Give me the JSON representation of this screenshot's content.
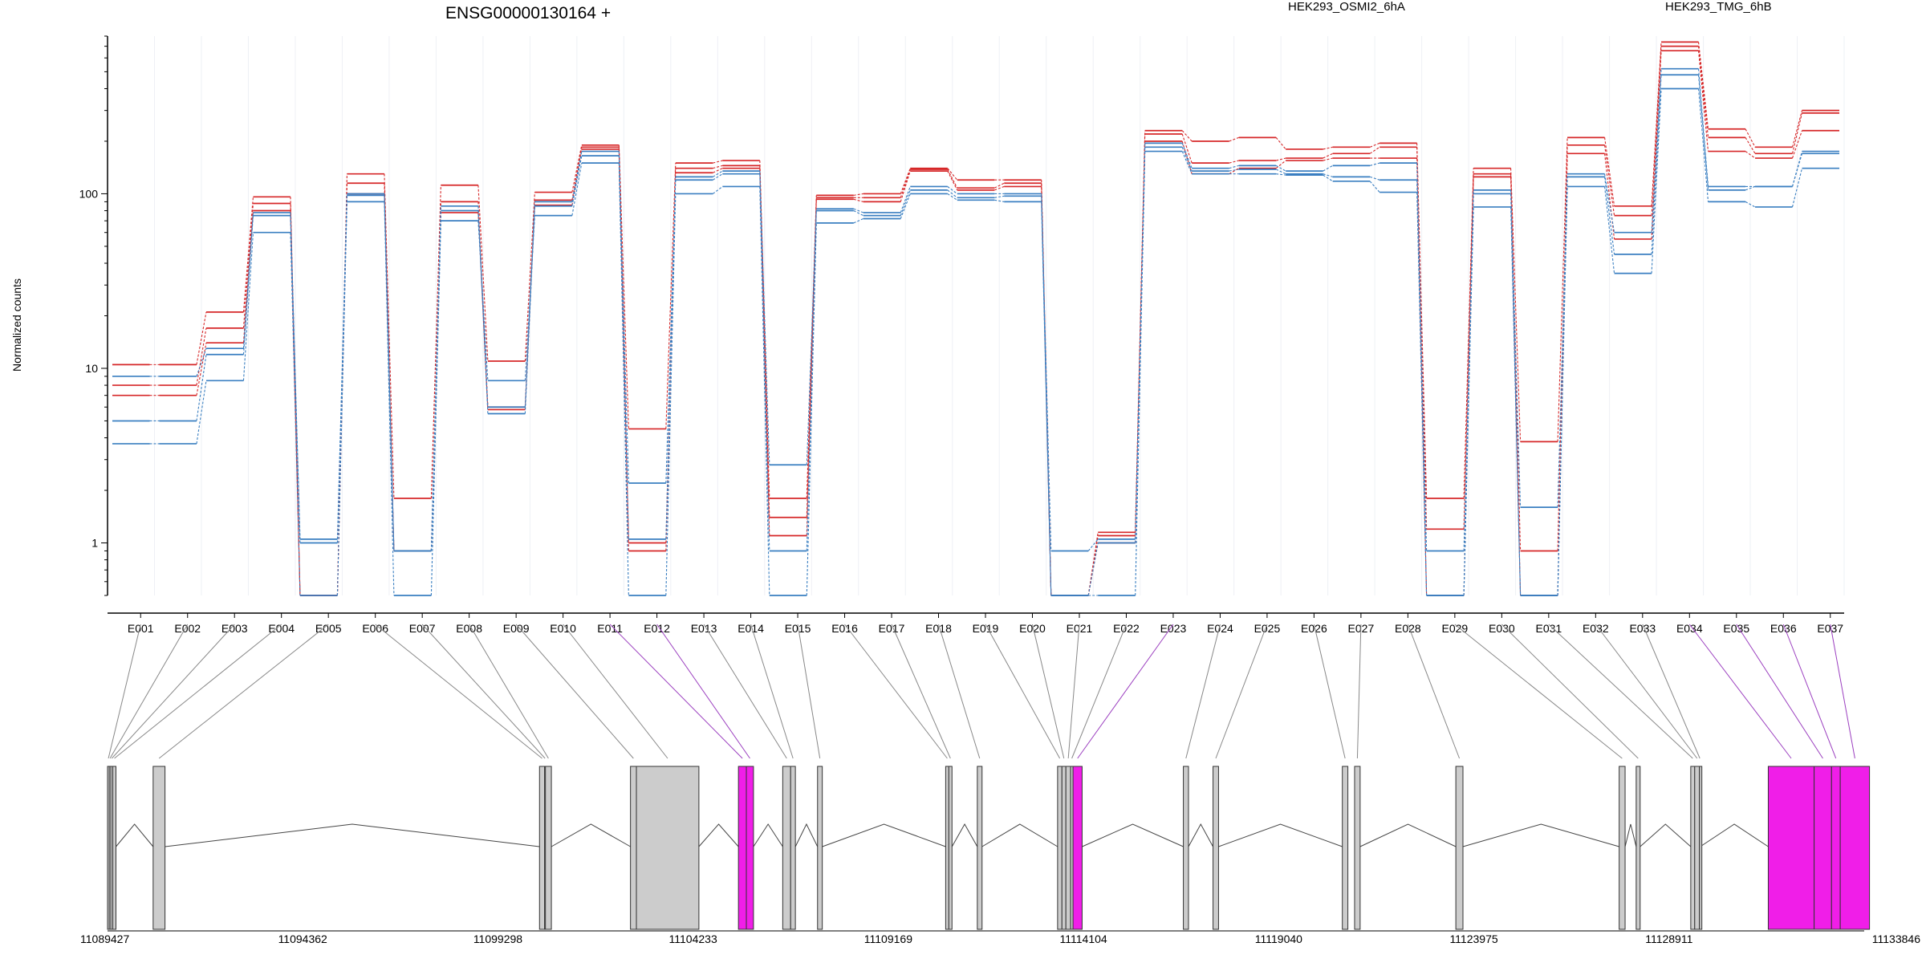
{
  "title": "ENSG00000130164 +",
  "legend": [
    {
      "label": "HEK293_OSMI2_6hA",
      "color": "#d62728"
    },
    {
      "label": "HEK293_TMG_6hB",
      "color": "#3a7fc1"
    }
  ],
  "colors": {
    "highlight_exon": "#f01ee8",
    "exon": "#cccccc",
    "link_highlight": "#9b3fbf",
    "link": "#888888"
  },
  "chart_data": {
    "type": "line",
    "scale": "log",
    "ylabel": "Normalized counts",
    "yticks": [
      "1",
      "10",
      "100"
    ],
    "ylim": [
      0.5,
      800
    ],
    "categories": [
      "E001",
      "E002",
      "E003",
      "E004",
      "E005",
      "E006",
      "E007",
      "E008",
      "E009",
      "E010",
      "E011",
      "E012",
      "E013",
      "E014",
      "E015",
      "E016",
      "E017",
      "E018",
      "E019",
      "E020",
      "E021",
      "E022",
      "E023",
      "E024",
      "E025",
      "E026",
      "E027",
      "E028",
      "E029",
      "E030",
      "E031",
      "E032",
      "E033",
      "E034",
      "E035",
      "E036",
      "E037"
    ],
    "series": [
      {
        "group": "HEK293_OSMI2_6hA",
        "values": [
          10.5,
          10.5,
          21,
          96,
          0.5,
          130,
          1.8,
          112,
          11,
          102,
          190,
          4.5,
          150,
          155,
          1.8,
          98,
          100,
          140,
          120,
          120,
          0.5,
          1.15,
          230,
          200,
          210,
          180,
          185,
          195,
          1.8,
          140,
          3.8,
          210,
          85,
          740,
          235,
          185,
          300
        ]
      },
      {
        "group": "HEK293_OSMI2_6hA",
        "values": [
          8,
          8,
          17,
          88,
          0.5,
          115,
          0.9,
          90,
          6,
          92,
          185,
          0.9,
          140,
          145,
          1.4,
          95,
          95,
          138,
          108,
          115,
          0.5,
          1.1,
          220,
          150,
          155,
          160,
          170,
          185,
          1.2,
          130,
          0.9,
          190,
          75,
          700,
          210,
          170,
          290
        ]
      },
      {
        "group": "HEK293_OSMI2_6hA",
        "values": [
          7,
          7,
          14,
          80,
          0.5,
          100,
          0.9,
          78,
          5.8,
          86,
          180,
          1.0,
          132,
          140,
          1.1,
          93,
          90,
          135,
          105,
          110,
          0.5,
          1.0,
          200,
          130,
          140,
          155,
          160,
          160,
          0.5,
          125,
          0.5,
          170,
          55,
          660,
          175,
          160,
          230
        ]
      },
      {
        "group": "HEK293_TMG_6hB",
        "values": [
          9,
          9,
          13,
          78,
          1.05,
          100,
          0.9,
          85,
          6,
          90,
          175,
          1.05,
          125,
          135,
          2.8,
          82,
          78,
          110,
          100,
          100,
          0.9,
          1.05,
          195,
          140,
          145,
          135,
          145,
          150,
          0.9,
          105,
          1.6,
          130,
          60,
          520,
          110,
          110,
          175
        ]
      },
      {
        "group": "HEK293_TMG_6hB",
        "values": [
          5,
          5,
          12,
          75,
          1.0,
          98,
          0.9,
          80,
          5.5,
          85,
          165,
          2.2,
          120,
          130,
          0.9,
          80,
          75,
          105,
          95,
          97,
          0.5,
          1.0,
          185,
          135,
          138,
          130,
          125,
          120,
          0.5,
          100,
          0.5,
          125,
          45,
          480,
          105,
          110,
          170
        ]
      },
      {
        "group": "HEK293_TMG_6hB",
        "values": [
          3.7,
          3.7,
          8.5,
          60,
          0.5,
          90,
          0.5,
          70,
          8.5,
          75,
          150,
          0.5,
          100,
          110,
          0.5,
          68,
          72,
          100,
          92,
          90,
          0.5,
          0.5,
          175,
          130,
          130,
          128,
          118,
          102,
          0.5,
          84,
          0.5,
          110,
          35,
          400,
          90,
          84,
          140
        ]
      }
    ],
    "genomic_ticks": [
      "11089427",
      "11094362",
      "11099298",
      "11104233",
      "11109169",
      "11114104",
      "11119040",
      "11123975",
      "11128911",
      "11133846"
    ],
    "exons": [
      {
        "id": "E001",
        "start": 11089427,
        "end": 11089470,
        "highlight": false
      },
      {
        "id": "E002",
        "start": 11089470,
        "end": 11089510,
        "highlight": false
      },
      {
        "id": "E003",
        "start": 11089510,
        "end": 11089560,
        "highlight": false
      },
      {
        "id": "E004",
        "start": 11089560,
        "end": 11089640,
        "highlight": false
      },
      {
        "id": "E005",
        "start": 11090580,
        "end": 11090880,
        "highlight": false
      },
      {
        "id": "E006",
        "start": 11100350,
        "end": 11100480,
        "highlight": false
      },
      {
        "id": "E007",
        "start": 11100480,
        "end": 11100500,
        "highlight": false
      },
      {
        "id": "E008",
        "start": 11100500,
        "end": 11100650,
        "highlight": false
      },
      {
        "id": "E009",
        "start": 11102650,
        "end": 11102800,
        "highlight": false
      },
      {
        "id": "E010",
        "start": 11102800,
        "end": 11104380,
        "highlight": false
      },
      {
        "id": "E011",
        "start": 11105380,
        "end": 11105580,
        "highlight": true
      },
      {
        "id": "E012",
        "start": 11105580,
        "end": 11105760,
        "highlight": true
      },
      {
        "id": "E013",
        "start": 11106500,
        "end": 11106700,
        "highlight": false
      },
      {
        "id": "E014",
        "start": 11106700,
        "end": 11106820,
        "highlight": false
      },
      {
        "id": "E015",
        "start": 11107380,
        "end": 11107500,
        "highlight": false
      },
      {
        "id": "E016",
        "start": 11110620,
        "end": 11110700,
        "highlight": false
      },
      {
        "id": "E017",
        "start": 11110700,
        "end": 11110780,
        "highlight": false
      },
      {
        "id": "E018",
        "start": 11111420,
        "end": 11111540,
        "highlight": false
      },
      {
        "id": "E019",
        "start": 11113450,
        "end": 11113560,
        "highlight": false
      },
      {
        "id": "E020",
        "start": 11113560,
        "end": 11113660,
        "highlight": false
      },
      {
        "id": "E021",
        "start": 11113660,
        "end": 11113780,
        "highlight": false
      },
      {
        "id": "E022",
        "start": 11113780,
        "end": 11113840,
        "highlight": false
      },
      {
        "id": "E023",
        "start": 11113840,
        "end": 11114070,
        "highlight": true
      },
      {
        "id": "E024",
        "start": 11116630,
        "end": 11116760,
        "highlight": false
      },
      {
        "id": "E025",
        "start": 11117380,
        "end": 11117520,
        "highlight": false
      },
      {
        "id": "E026",
        "start": 11120650,
        "end": 11120790,
        "highlight": false
      },
      {
        "id": "E027",
        "start": 11120960,
        "end": 11121100,
        "highlight": false
      },
      {
        "id": "E028",
        "start": 11123520,
        "end": 11123700,
        "highlight": false
      },
      {
        "id": "E029",
        "start": 11127650,
        "end": 11127800,
        "highlight": false
      },
      {
        "id": "E030",
        "start": 11128080,
        "end": 11128180,
        "highlight": false
      },
      {
        "id": "E031",
        "start": 11129460,
        "end": 11129560,
        "highlight": false
      },
      {
        "id": "E032",
        "start": 11129560,
        "end": 11129680,
        "highlight": false
      },
      {
        "id": "E033",
        "start": 11129680,
        "end": 11129700,
        "highlight": false
      },
      {
        "id": "E034",
        "start": 11131420,
        "end": 11132580,
        "highlight": true
      },
      {
        "id": "E035",
        "start": 11132580,
        "end": 11133020,
        "highlight": true
      },
      {
        "id": "E036",
        "start": 11133020,
        "end": 11133240,
        "highlight": true
      },
      {
        "id": "E037",
        "start": 11133240,
        "end": 11133980,
        "highlight": true
      }
    ],
    "intron_peaks": [
      [
        11089640,
        11090580
      ],
      [
        11090880,
        11100350
      ],
      [
        11100650,
        11102650
      ],
      [
        11104380,
        11105380
      ],
      [
        11105760,
        11106500
      ],
      [
        11106820,
        11107380
      ],
      [
        11107500,
        11110620
      ],
      [
        11110780,
        11111420
      ],
      [
        11111540,
        11113450
      ],
      [
        11114070,
        11116630
      ],
      [
        11116760,
        11117380
      ],
      [
        11117520,
        11120650
      ],
      [
        11121100,
        11123520
      ],
      [
        11123700,
        11127650
      ],
      [
        11127800,
        11128080
      ],
      [
        11128180,
        11129460
      ],
      [
        11129700,
        11131420
      ]
    ]
  }
}
